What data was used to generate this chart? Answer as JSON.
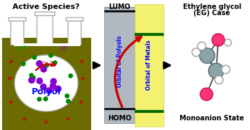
{
  "bg_color": "#ffffff",
  "left": {
    "title": "Active Species?",
    "bg_color": "#6b6b00",
    "flask_face": "#ffffff",
    "flask_edge": "#aaaaaa",
    "green_dot": "#008800",
    "purple_dot": "#8800cc",
    "polyol_color": "#0000ff",
    "m2_color": "#00aa00",
    "m0_color": "#9900aa",
    "arrow_color": "#cc0000"
  },
  "mid": {
    "lumo": "LUMO",
    "homo": "HOMO",
    "polyol_label": "Orbital of Polyols",
    "metal_label": "Orbital of Metals",
    "gray_col": "#b0b8c0",
    "yellow_col": "#f2f270",
    "bar_color": "#006600",
    "red_arrow": "#cc0000",
    "text_color": "#0000ff"
  },
  "right": {
    "title1": "Ethylene glycol",
    "title2": "(EG) Case",
    "sub": "Monoanion State",
    "C_color": "#8aa4a8",
    "O_color": "#ff3377",
    "H_color": "#ffffff",
    "bond_color": "#555555"
  }
}
